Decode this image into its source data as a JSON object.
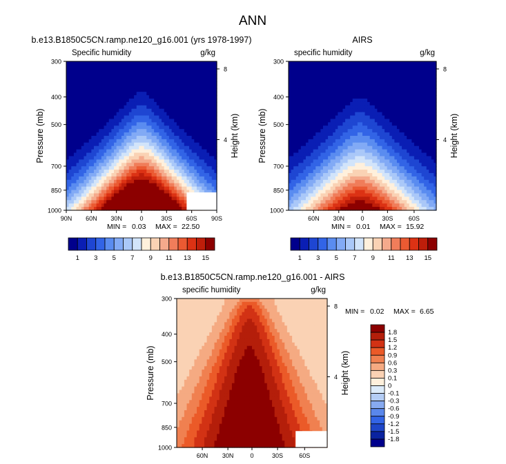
{
  "main_title": "ANN",
  "chart_data": [
    {
      "type": "heatmap",
      "title": "b.e13.B1850C5CN.ramp.ne120_g16.001 (yrs 1978-1997)",
      "variable": "Specific humidity",
      "units": "g/kg",
      "ylabel": "Pressure (mb)",
      "y2label": "Height (km)",
      "x_ticks": [
        "90N",
        "60N",
        "30N",
        "0",
        "30S",
        "60S",
        "90S"
      ],
      "y_ticks": [
        "300",
        "400",
        "500",
        "700",
        "850",
        "1000"
      ],
      "height_ticks": [
        "8",
        "4"
      ],
      "min_label": "MIN =",
      "min_value": "0.03",
      "max_label": "MAX =",
      "max_value": "22.50",
      "field_peak": 22.5,
      "missing_south_pole_box": true
    },
    {
      "type": "heatmap",
      "title": "AIRS",
      "variable": "specific humidity",
      "units": "g/kg",
      "ylabel": "Pressure (mb)",
      "y2label": "Height (km)",
      "x_ticks": [
        "60N",
        "30N",
        "0",
        "30S",
        "60S"
      ],
      "y_ticks": [
        "300",
        "400",
        "500",
        "700",
        "850",
        "1000"
      ],
      "height_ticks": [
        "8",
        "4"
      ],
      "min_label": "MIN =",
      "min_value": "0.01",
      "max_label": "MAX =",
      "max_value": "15.92",
      "field_peak": 15.92
    },
    {
      "type": "heatmap",
      "title": "b.e13.B1850C5CN.ramp.ne120_g16.001 - AIRS",
      "variable": "specific humidity",
      "units": "g/kg",
      "ylabel": "Pressure (mb)",
      "y2label": "Height (km)",
      "x_ticks": [
        "60N",
        "30N",
        "0",
        "30S",
        "60S"
      ],
      "y_ticks": [
        "300",
        "400",
        "500",
        "700",
        "850",
        "1000"
      ],
      "height_ticks": [
        "8",
        "4"
      ],
      "min_label": "MIN =",
      "min_value": "0.02",
      "max_label": "MAX =",
      "max_value": "6.65"
    }
  ],
  "colorbar_top": {
    "orientation": "horizontal",
    "colors": [
      "#00008c",
      "#0a1eb4",
      "#1e46d2",
      "#3264e6",
      "#5a8cf0",
      "#82aaf5",
      "#aac8f8",
      "#d2e4fa",
      "#fff0dc",
      "#fad2b4",
      "#f5aa8c",
      "#f07d5a",
      "#eb5a32",
      "#dc3214",
      "#be1e0a",
      "#8c0000"
    ],
    "labels": [
      "1",
      "3",
      "5",
      "7",
      "9",
      "11",
      "13",
      "15"
    ]
  },
  "colorbar_diff": {
    "orientation": "vertical",
    "colors": [
      "#8c0000",
      "#b41e0a",
      "#d23214",
      "#eb5a28",
      "#f08050",
      "#f5aa82",
      "#fad2b4",
      "#fff0dc",
      "#dcebfa",
      "#b4cdf5",
      "#87aaf0",
      "#5a87eb",
      "#3264e6",
      "#1e46c8",
      "#0a23a0",
      "#00008c"
    ],
    "labels": [
      "1.8",
      "1.5",
      "1.2",
      "0.9",
      "0.6",
      "0.3",
      "0.1",
      "0",
      "-0.1",
      "-0.3",
      "-0.6",
      "-0.9",
      "-1.2",
      "-1.5",
      "-1.8"
    ]
  }
}
